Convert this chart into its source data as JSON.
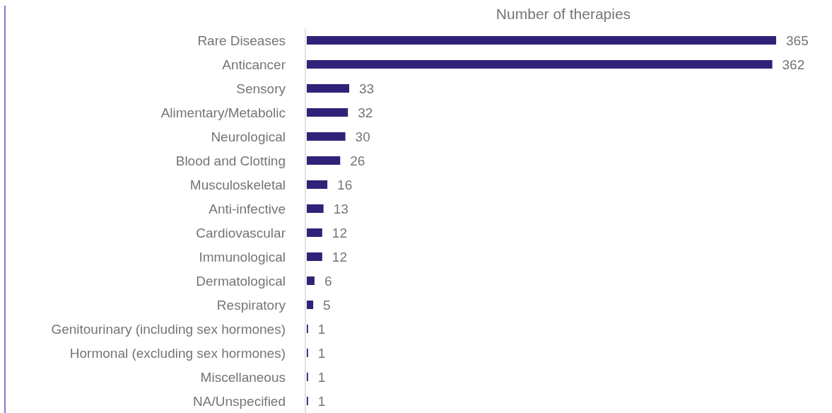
{
  "chart_data": {
    "type": "bar",
    "orientation": "horizontal",
    "title": "Number of therapies",
    "categories": [
      "Rare Diseases",
      "Anticancer",
      "Sensory",
      "Alimentary/Metabolic",
      "Neurological",
      "Blood and Clotting",
      "Musculoskeletal",
      "Anti-infective",
      "Cardiovascular",
      "Immunological",
      "Dermatological",
      "Respiratory",
      "Genitourinary (including sex hormones)",
      "Hormonal (excluding sex hormones)",
      "Miscellaneous",
      "NA/Unspecified"
    ],
    "values": [
      365,
      362,
      33,
      32,
      30,
      26,
      16,
      13,
      12,
      12,
      6,
      5,
      1,
      1,
      1,
      1
    ],
    "color": "#2e2378",
    "data_labels": true,
    "tick_labels": "y"
  }
}
